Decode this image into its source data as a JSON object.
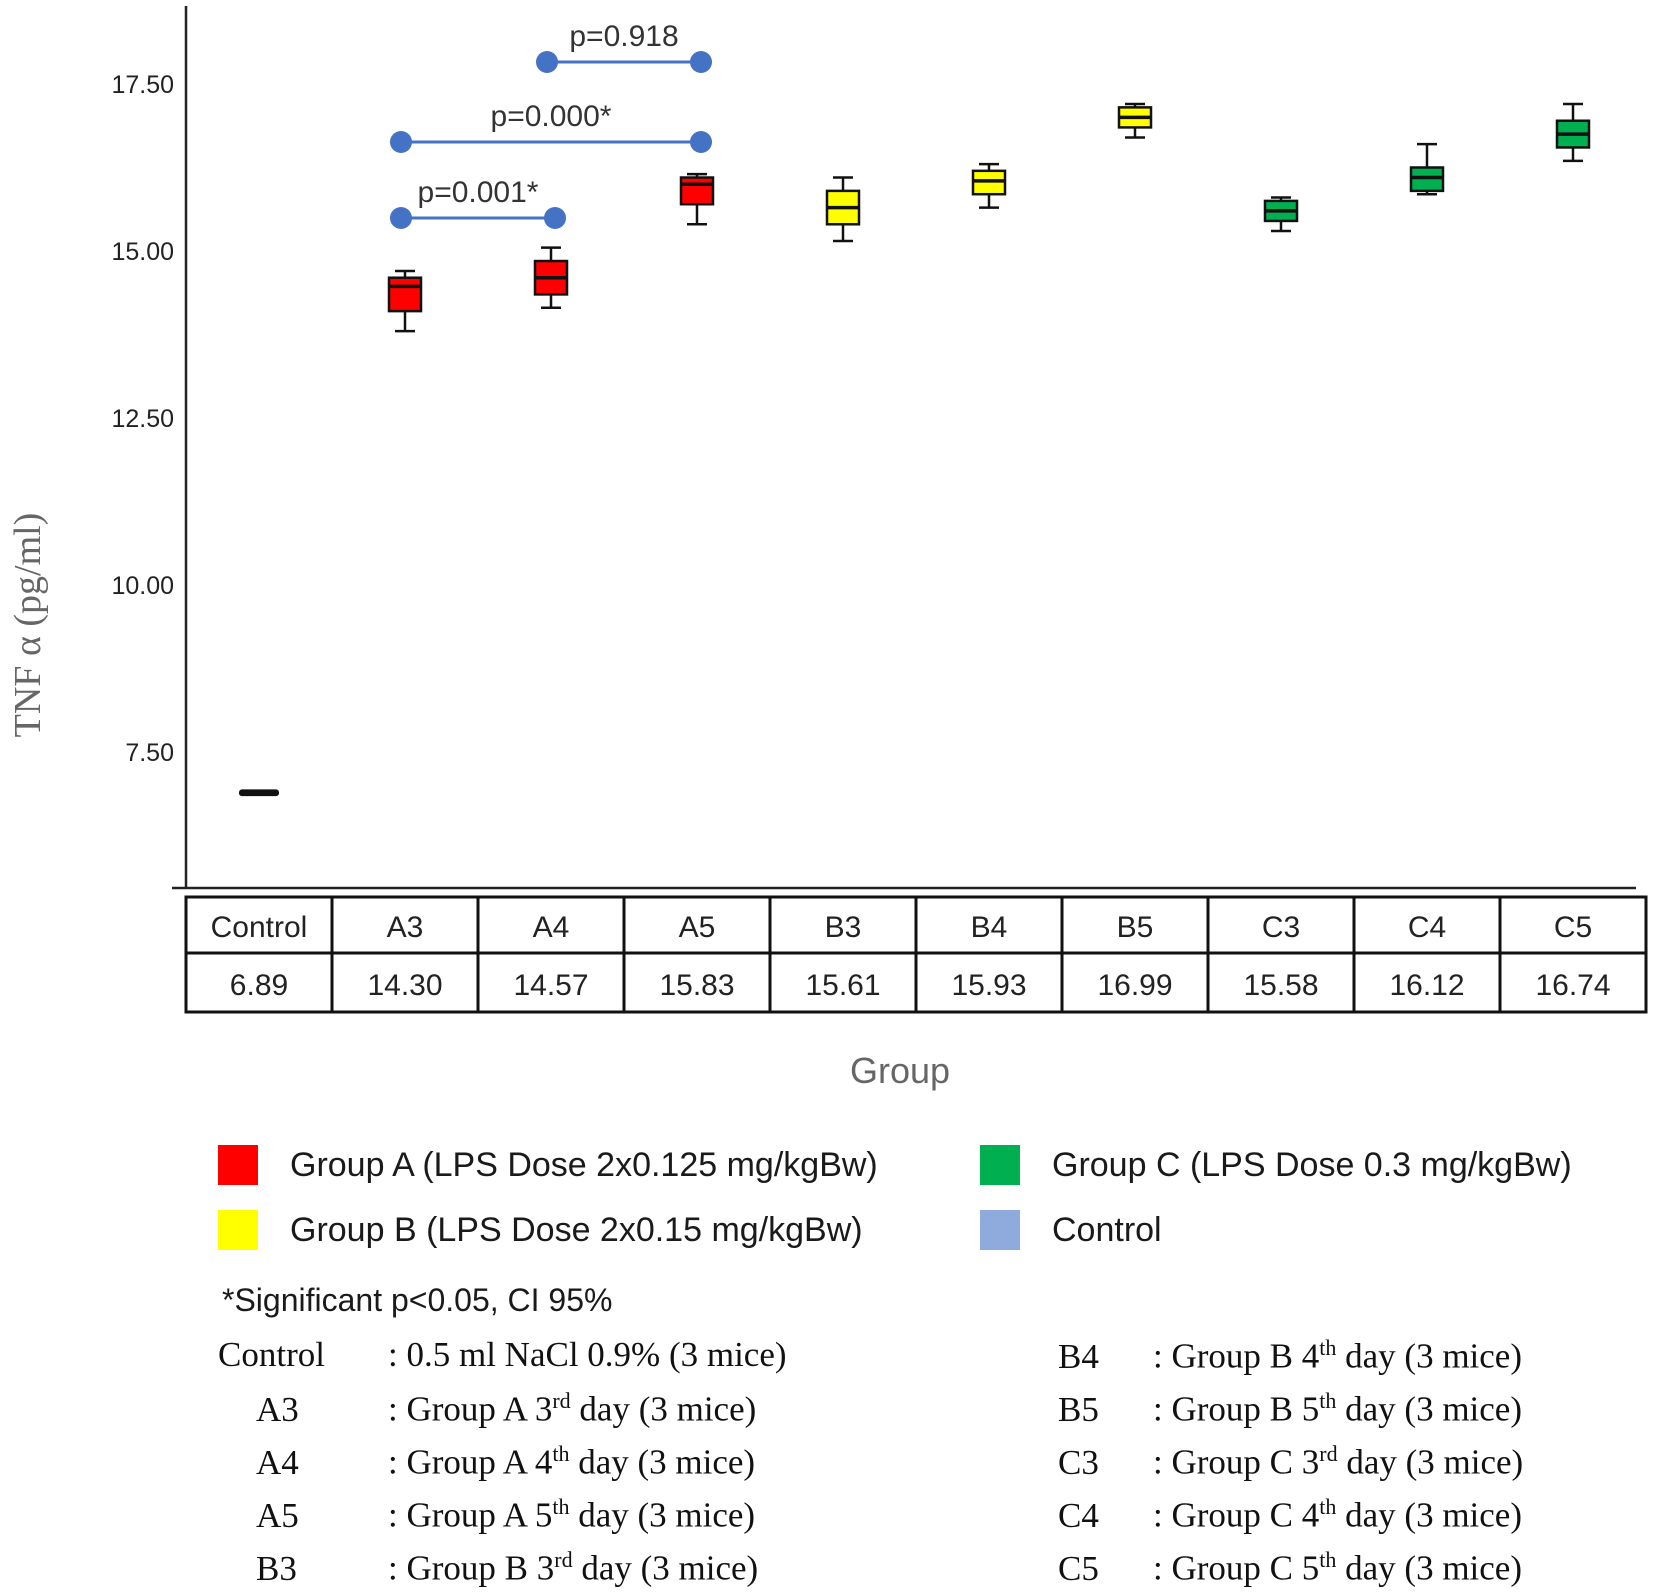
{
  "chart_data": {
    "type": "box",
    "ylabel": "TNF α (pg/ml)",
    "xlabel": "Group",
    "yticks": [
      "7.50",
      "10.00",
      "12.50",
      "15.00",
      "17.50"
    ],
    "categories": [
      "Control",
      "A3",
      "A4",
      "A5",
      "B3",
      "B4",
      "B5",
      "C3",
      "C4",
      "C5"
    ],
    "table_values": [
      "6.89",
      "14.30",
      "14.57",
      "15.83",
      "15.61",
      "15.93",
      "16.99",
      "15.58",
      "16.12",
      "16.74"
    ],
    "boxes": [
      {
        "category": "Control",
        "group": "Control",
        "min": 6.87,
        "q1": 6.87,
        "median": 6.89,
        "q3": 6.91,
        "max": 6.91
      },
      {
        "category": "A3",
        "group": "A",
        "min": 13.8,
        "q1": 14.1,
        "median": 14.47,
        "q3": 14.6,
        "max": 14.7
      },
      {
        "category": "A4",
        "group": "A",
        "min": 14.15,
        "q1": 14.35,
        "median": 14.6,
        "q3": 14.85,
        "max": 15.05
      },
      {
        "category": "A5",
        "group": "A",
        "min": 15.4,
        "q1": 15.7,
        "median": 16.0,
        "q3": 16.1,
        "max": 16.15
      },
      {
        "category": "B3",
        "group": "B",
        "min": 15.15,
        "q1": 15.4,
        "median": 15.65,
        "q3": 15.9,
        "max": 16.1
      },
      {
        "category": "B4",
        "group": "B",
        "min": 15.65,
        "q1": 15.85,
        "median": 16.05,
        "q3": 16.2,
        "max": 16.3
      },
      {
        "category": "B5",
        "group": "B",
        "min": 16.7,
        "q1": 16.85,
        "median": 17.0,
        "q3": 17.15,
        "max": 17.2
      },
      {
        "category": "C3",
        "group": "C",
        "min": 15.3,
        "q1": 15.45,
        "median": 15.6,
        "q3": 15.75,
        "max": 15.8
      },
      {
        "category": "C4",
        "group": "C",
        "min": 15.85,
        "q1": 15.9,
        "median": 16.1,
        "q3": 16.25,
        "max": 16.6
      },
      {
        "category": "C5",
        "group": "C",
        "min": 16.35,
        "q1": 16.55,
        "median": 16.75,
        "q3": 16.95,
        "max": 17.2
      }
    ],
    "comparisons": [
      {
        "from": "A3",
        "to": "A4",
        "label": "p=0.001*"
      },
      {
        "from": "A3",
        "to": "A5",
        "label": "p=0.000*"
      },
      {
        "from": "A4",
        "to": "A5",
        "label": "p=0.918"
      }
    ],
    "colors": {
      "A": "#ff0000",
      "B": "#ffff00",
      "C": "#00b050",
      "Control": "#8faadc",
      "bracket": "#4472c4"
    }
  },
  "legend": {
    "items": [
      {
        "label": "Group A (LPS Dose 2x0.125 mg/kgBw)",
        "color": "#ff0000"
      },
      {
        "label": "Group  B (LPS Dose 2x0.15 mg/kgBw)",
        "color": "#ffff00"
      },
      {
        "label": "Group C (LPS Dose 0.3 mg/kgBw)",
        "color": "#00b050"
      },
      {
        "label": "Control",
        "color": "#8faadc"
      }
    ],
    "note": "*Significant p<0.05, CI 95%",
    "definitions": [
      {
        "code": "Control",
        "pre": ": 0.5 ml NaCl 0.9% (3 mice)",
        "sup": "",
        "post": ""
      },
      {
        "code": "A3",
        "pre": ": Group A 3",
        "sup": "rd",
        "post": " day (3 mice)"
      },
      {
        "code": "A4",
        "pre": ": Group A 4",
        "sup": "th",
        "post": " day (3 mice)"
      },
      {
        "code": "A5",
        "pre": ": Group A 5",
        "sup": "th",
        "post": " day (3 mice)"
      },
      {
        "code": "B3",
        "pre": ": Group B 3",
        "sup": "rd",
        "post": " day (3 mice)"
      },
      {
        "code": "B4",
        "pre": ": Group B 4",
        "sup": "th",
        "post": " day (3 mice)"
      },
      {
        "code": "B5",
        "pre": ": Group B 5",
        "sup": "th",
        "post": " day (3 mice)"
      },
      {
        "code": "C3",
        "pre": ": Group C 3",
        "sup": "rd",
        "post": " day (3 mice)"
      },
      {
        "code": "C4",
        "pre": ": Group C 4",
        "sup": "th",
        "post": " day (3 mice)"
      },
      {
        "code": "C5",
        "pre": ": Group C 5",
        "sup": "th",
        "post": " day (3 mice)"
      }
    ]
  }
}
